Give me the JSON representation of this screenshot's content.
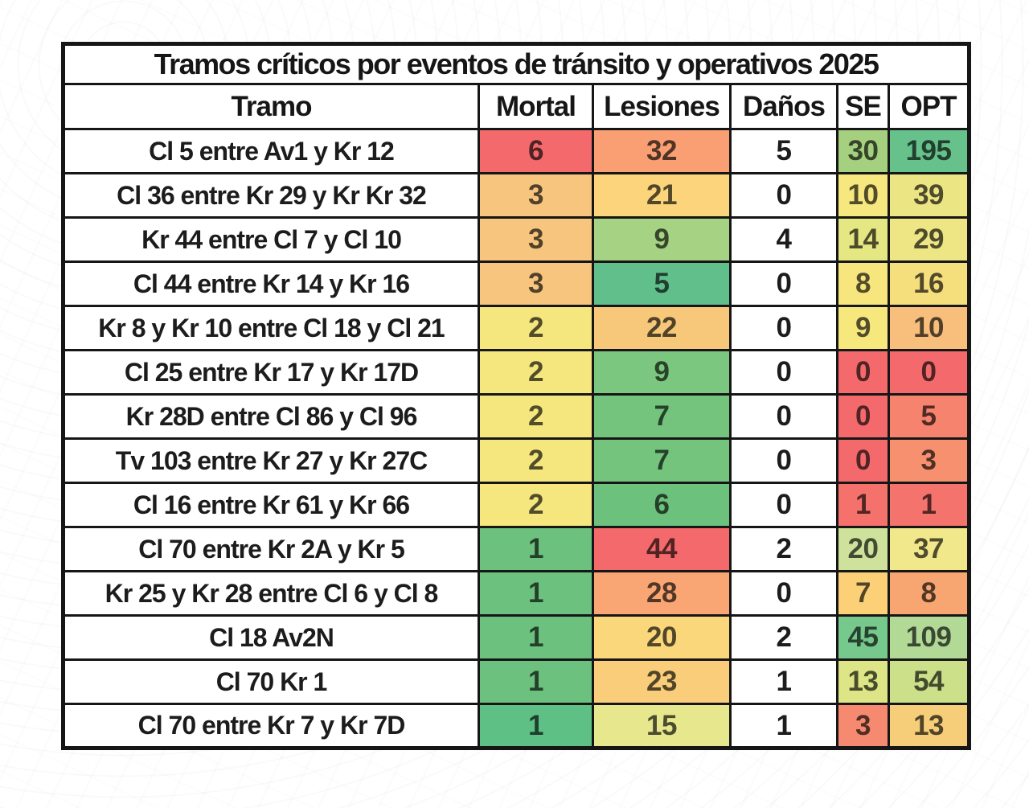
{
  "page": {
    "background_color": "#ffffff",
    "border_color": "#161616"
  },
  "chart_data": {
    "type": "table",
    "title": "Tramos críticos por eventos de tránsito y operativos 2025",
    "columns": [
      "Tramo",
      "Mortal",
      "Lesiones",
      "Daños",
      "SE",
      "OPT"
    ],
    "legend_position": "none",
    "grid": "full-black-borders",
    "rows": [
      {
        "tramo": "Cl 5 entre Av1 y Kr 12",
        "cells": [
          {
            "col": "Mortal",
            "value": "6",
            "bg": "#f3696c"
          },
          {
            "col": "Lesiones",
            "value": "32",
            "bg": "#f99f73"
          },
          {
            "col": "Daños",
            "value": "5",
            "bg": "#ffffff"
          },
          {
            "col": "SE",
            "value": "30",
            "bg": "#a5d07f"
          },
          {
            "col": "OPT",
            "value": "195",
            "bg": "#66c18b"
          }
        ]
      },
      {
        "tramo": "Cl 36 entre Kr 29 y Kr Kr 32",
        "cells": [
          {
            "col": "Mortal",
            "value": "3",
            "bg": "#f7c57e"
          },
          {
            "col": "Lesiones",
            "value": "21",
            "bg": "#fbd47b"
          },
          {
            "col": "Daños",
            "value": "0",
            "bg": "#ffffff"
          },
          {
            "col": "SE",
            "value": "10",
            "bg": "#f6e77e"
          },
          {
            "col": "OPT",
            "value": "39",
            "bg": "#ece584"
          }
        ]
      },
      {
        "tramo": "Kr 44 entre Cl 7 y Cl 10",
        "cells": [
          {
            "col": "Mortal",
            "value": "3",
            "bg": "#f7c57e"
          },
          {
            "col": "Lesiones",
            "value": "9",
            "bg": "#a6d383"
          },
          {
            "col": "Daños",
            "value": "4",
            "bg": "#ffffff"
          },
          {
            "col": "SE",
            "value": "14",
            "bg": "#e5e782"
          },
          {
            "col": "OPT",
            "value": "29",
            "bg": "#eee684"
          }
        ]
      },
      {
        "tramo": "Cl 44 entre Kr 14 y Kr 16",
        "cells": [
          {
            "col": "Mortal",
            "value": "3",
            "bg": "#f7c57e"
          },
          {
            "col": "Lesiones",
            "value": "5",
            "bg": "#60bf8b"
          },
          {
            "col": "Daños",
            "value": "0",
            "bg": "#ffffff"
          },
          {
            "col": "SE",
            "value": "8",
            "bg": "#f7e67d"
          },
          {
            "col": "OPT",
            "value": "16",
            "bg": "#f5de7c"
          }
        ]
      },
      {
        "tramo": "Kr 8 y Kr 10 entre Cl 18 y Cl 21",
        "cells": [
          {
            "col": "Mortal",
            "value": "2",
            "bg": "#f5e77e"
          },
          {
            "col": "Lesiones",
            "value": "22",
            "bg": "#f8c87a"
          },
          {
            "col": "Daños",
            "value": "0",
            "bg": "#ffffff"
          },
          {
            "col": "SE",
            "value": "9",
            "bg": "#f7e87e"
          },
          {
            "col": "OPT",
            "value": "10",
            "bg": "#f7be7c"
          }
        ]
      },
      {
        "tramo": "Cl 25 entre Kr 17 y Kr 17D",
        "cells": [
          {
            "col": "Mortal",
            "value": "2",
            "bg": "#f5e77e"
          },
          {
            "col": "Lesiones",
            "value": "9",
            "bg": "#7cc77f"
          },
          {
            "col": "Daños",
            "value": "0",
            "bg": "#ffffff"
          },
          {
            "col": "SE",
            "value": "0",
            "bg": "#f3696c"
          },
          {
            "col": "OPT",
            "value": "0",
            "bg": "#f3696c"
          }
        ]
      },
      {
        "tramo": "Kr 28D entre Cl 86 y Cl 96",
        "cells": [
          {
            "col": "Mortal",
            "value": "2",
            "bg": "#f5e77e"
          },
          {
            "col": "Lesiones",
            "value": "7",
            "bg": "#74c47e"
          },
          {
            "col": "Daños",
            "value": "0",
            "bg": "#ffffff"
          },
          {
            "col": "SE",
            "value": "0",
            "bg": "#f3696c"
          },
          {
            "col": "OPT",
            "value": "5",
            "bg": "#f6836e"
          }
        ]
      },
      {
        "tramo": "Tv 103 entre Kr 27 y Kr 27C",
        "cells": [
          {
            "col": "Mortal",
            "value": "2",
            "bg": "#f5e77e"
          },
          {
            "col": "Lesiones",
            "value": "7",
            "bg": "#74c47e"
          },
          {
            "col": "Daños",
            "value": "0",
            "bg": "#ffffff"
          },
          {
            "col": "SE",
            "value": "0",
            "bg": "#f3696c"
          },
          {
            "col": "OPT",
            "value": "3",
            "bg": "#f6906f"
          }
        ]
      },
      {
        "tramo": "Cl 16 entre Kr 61 y Kr 66",
        "cells": [
          {
            "col": "Mortal",
            "value": "2",
            "bg": "#f5e77e"
          },
          {
            "col": "Lesiones",
            "value": "6",
            "bg": "#6cc27d"
          },
          {
            "col": "Daños",
            "value": "0",
            "bg": "#ffffff"
          },
          {
            "col": "SE",
            "value": "1",
            "bg": "#f4716c"
          },
          {
            "col": "OPT",
            "value": "1",
            "bg": "#f4746d"
          }
        ]
      },
      {
        "tramo": "Cl 70 entre Kr 2A y Kr 5",
        "cells": [
          {
            "col": "Mortal",
            "value": "1",
            "bg": "#6dc17e"
          },
          {
            "col": "Lesiones",
            "value": "44",
            "bg": "#f4696b"
          },
          {
            "col": "Daños",
            "value": "2",
            "bg": "#ffffff"
          },
          {
            "col": "SE",
            "value": "20",
            "bg": "#cfe29b"
          },
          {
            "col": "OPT",
            "value": "37",
            "bg": "#f0e88b"
          }
        ]
      },
      {
        "tramo": "Kr 25 y Kr 28 entre Cl 6 y Cl 8",
        "cells": [
          {
            "col": "Mortal",
            "value": "1",
            "bg": "#6dc17e"
          },
          {
            "col": "Lesiones",
            "value": "28",
            "bg": "#f9a674"
          },
          {
            "col": "Daños",
            "value": "0",
            "bg": "#ffffff"
          },
          {
            "col": "SE",
            "value": "7",
            "bg": "#fbd077"
          },
          {
            "col": "OPT",
            "value": "8",
            "bg": "#f8a671"
          }
        ]
      },
      {
        "tramo": "Cl 18 Av2N",
        "cells": [
          {
            "col": "Mortal",
            "value": "1",
            "bg": "#6dc17e"
          },
          {
            "col": "Lesiones",
            "value": "20",
            "bg": "#fbd77c"
          },
          {
            "col": "Daños",
            "value": "2",
            "bg": "#ffffff"
          },
          {
            "col": "SE",
            "value": "45",
            "bg": "#76c88c"
          },
          {
            "col": "OPT",
            "value": "109",
            "bg": "#b2da96"
          }
        ]
      },
      {
        "tramo": "Cl 70 Kr 1",
        "cells": [
          {
            "col": "Mortal",
            "value": "1",
            "bg": "#6dc17e"
          },
          {
            "col": "Lesiones",
            "value": "23",
            "bg": "#f9cd7a"
          },
          {
            "col": "Daños",
            "value": "1",
            "bg": "#ffffff"
          },
          {
            "col": "SE",
            "value": "13",
            "bg": "#dde586"
          },
          {
            "col": "OPT",
            "value": "54",
            "bg": "#cce08a"
          }
        ]
      },
      {
        "tramo": "Cl 70 entre Kr 7 y Kr 7D",
        "cells": [
          {
            "col": "Mortal",
            "value": "1",
            "bg": "#5ec085"
          },
          {
            "col": "Lesiones",
            "value": "15",
            "bg": "#e7e88d"
          },
          {
            "col": "Daños",
            "value": "1",
            "bg": "#ffffff"
          },
          {
            "col": "SE",
            "value": "3",
            "bg": "#f58a70"
          },
          {
            "col": "OPT",
            "value": "13",
            "bg": "#f6ce79"
          }
        ]
      }
    ],
    "color_scale_note": {
      "high": "#f3696c",
      "mid": "#f5e77e",
      "low": "#6dc17e"
    }
  }
}
